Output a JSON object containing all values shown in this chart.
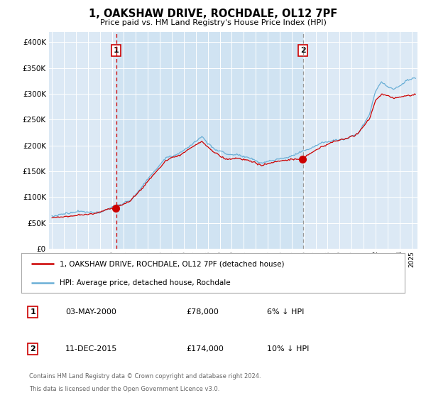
{
  "title": "1, OAKSHAW DRIVE, ROCHDALE, OL12 7PF",
  "subtitle": "Price paid vs. HM Land Registry's House Price Index (HPI)",
  "sale1_date": "03-MAY-2000",
  "sale1_price": 78000,
  "sale1_label": "6% ↓ HPI",
  "sale2_date": "11-DEC-2015",
  "sale2_price": 174000,
  "sale2_label": "10% ↓ HPI",
  "legend_line1": "1, OAKSHAW DRIVE, ROCHDALE, OL12 7PF (detached house)",
  "legend_line2": "HPI: Average price, detached house, Rochdale",
  "footer1": "Contains HM Land Registry data © Crown copyright and database right 2024.",
  "footer2": "This data is licensed under the Open Government Licence v3.0.",
  "sale1_year": 2000.35,
  "sale2_year": 2015.95,
  "background_color": "#dce9f5",
  "hpi_color": "#6aafd6",
  "prop_color": "#cc0000",
  "vline1_color": "#cc0000",
  "vline2_color": "#999999",
  "ylim_min": 0,
  "ylim_max": 420000,
  "yticks": [
    0,
    50000,
    100000,
    150000,
    200000,
    250000,
    300000,
    350000,
    400000
  ],
  "ytick_labels": [
    "£0",
    "£50K",
    "£100K",
    "£150K",
    "£200K",
    "£250K",
    "£300K",
    "£350K",
    "£400K"
  ]
}
